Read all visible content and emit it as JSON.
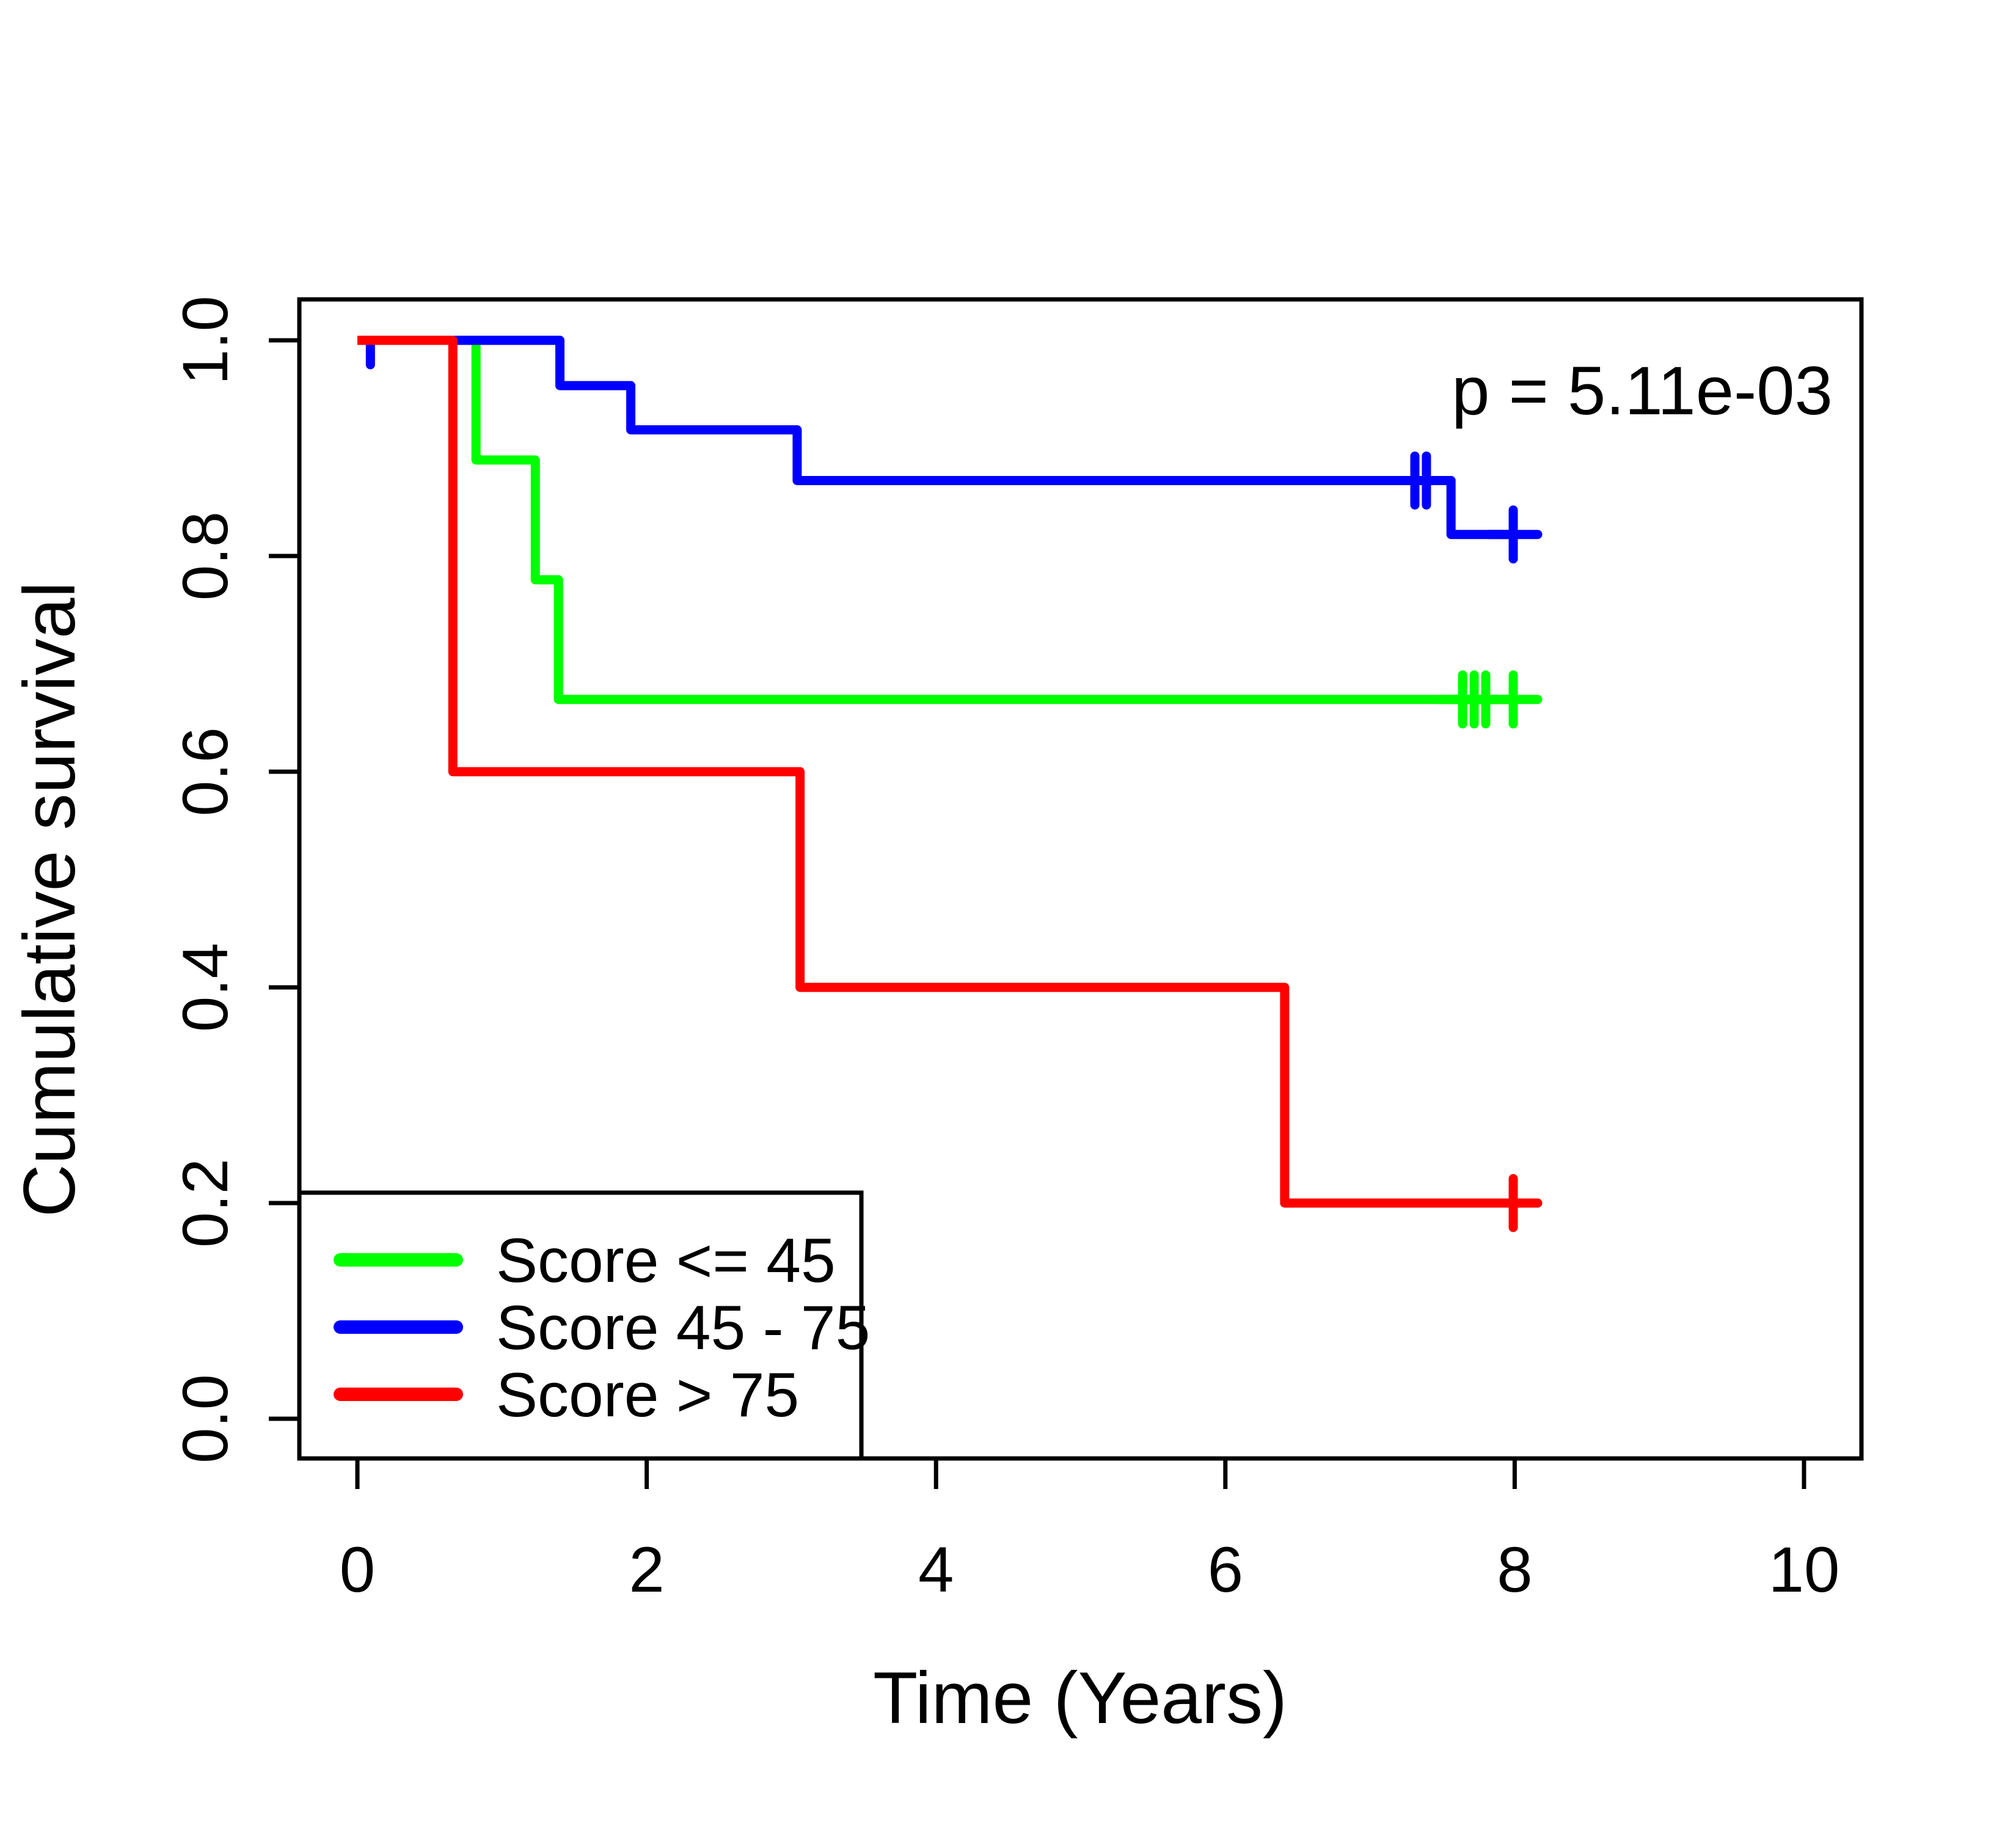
{
  "figure": {
    "background_color": "#ffffff",
    "axis_color": "#000000"
  },
  "annotation": {
    "p_value_label": "p = 5.11e-03"
  },
  "chart_data": {
    "type": "line",
    "subtype": "kaplan-meier-step-survival",
    "title": "",
    "xlabel": "Time (Years)",
    "ylabel": "Cumulative survival",
    "xlim": [
      0,
      10.4
    ],
    "ylim": [
      0.0,
      1.0
    ],
    "x_ticks": [
      0,
      2,
      4,
      6,
      8,
      10
    ],
    "y_tick_labels": [
      "0.0",
      "0.2",
      "0.4",
      "0.6",
      "0.8",
      "1.0"
    ],
    "grid": false,
    "legend_position": "bottom-left",
    "p_value": "5.11e-03",
    "series": [
      {
        "name": "Score <= 45",
        "color": "#00ff00",
        "steps": [
          [
            0,
            1.0
          ],
          [
            0.82,
            1.0
          ],
          [
            0.82,
            0.889
          ],
          [
            1.23,
            0.889
          ],
          [
            1.23,
            0.778
          ],
          [
            1.39,
            0.778
          ],
          [
            1.39,
            0.667
          ],
          [
            7.99,
            0.667
          ]
        ],
        "censor_marks": [
          {
            "t": 7.64,
            "s": 0.667
          },
          {
            "t": 7.72,
            "s": 0.667
          },
          {
            "t": 7.8,
            "s": 0.667
          },
          {
            "t": 7.99,
            "s": 0.667
          }
        ]
      },
      {
        "name": "Score 45 - 75",
        "color": "#0000ff",
        "steps": [
          [
            0,
            1.0
          ],
          [
            1.4,
            1.0
          ],
          [
            1.4,
            0.958
          ],
          [
            1.89,
            0.958
          ],
          [
            1.89,
            0.917
          ],
          [
            3.04,
            0.917
          ],
          [
            3.04,
            0.87
          ],
          [
            7.56,
            0.87
          ],
          [
            7.56,
            0.82
          ],
          [
            7.99,
            0.82
          ]
        ],
        "censor_marks": [
          {
            "t": 0.09,
            "s": 1.0,
            "clip": "below"
          },
          {
            "t": 7.31,
            "s": 0.87
          },
          {
            "t": 7.39,
            "s": 0.87
          },
          {
            "t": 7.99,
            "s": 0.82
          }
        ]
      },
      {
        "name": "Score > 75",
        "color": "#ff0000",
        "steps": [
          [
            0,
            1.0
          ],
          [
            0.66,
            1.0
          ],
          [
            0.66,
            0.6
          ],
          [
            3.06,
            0.6
          ],
          [
            3.06,
            0.4
          ],
          [
            6.41,
            0.4
          ],
          [
            6.41,
            0.2
          ],
          [
            7.99,
            0.2
          ]
        ],
        "censor_marks": [
          {
            "t": 7.99,
            "s": 0.2
          }
        ]
      }
    ]
  }
}
